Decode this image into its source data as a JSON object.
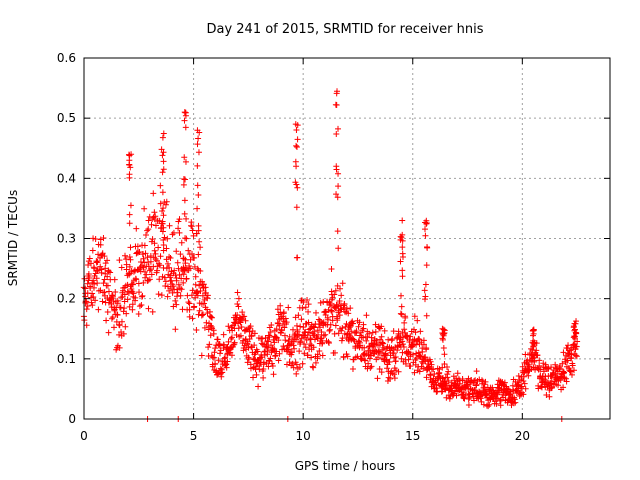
{
  "chart_data": {
    "type": "scatter",
    "title": "Day 241 of 2015, SRMTID for receiver hnis",
    "xlabel": "GPS time / hours",
    "ylabel": "SRMTID / TECUs",
    "xlim": [
      0,
      24
    ],
    "ylim": [
      0,
      0.6
    ],
    "xticks": [
      0,
      5,
      10,
      15,
      20
    ],
    "yticks": [
      0,
      0.1,
      0.2,
      0.3,
      0.4,
      0.5,
      0.6
    ],
    "xtick_labels": [
      "0",
      "5",
      "10",
      "15",
      "20"
    ],
    "ytick_labels": [
      "0",
      "0.1",
      "0.2",
      "0.3",
      "0.4",
      "0.5",
      "0.6"
    ],
    "grid": true,
    "marker": "+",
    "color": "#ff0000",
    "x_step_hours": 0.04,
    "series": [
      {
        "name": "SRMTID",
        "envelope": {
          "x": [
            0,
            0.5,
            1.0,
            1.5,
            2.0,
            2.5,
            3.0,
            3.5,
            4.0,
            4.5,
            5.0,
            5.5,
            6.0,
            6.5,
            7.0,
            7.5,
            8.0,
            8.5,
            9.0,
            9.5,
            10.0,
            10.5,
            11.0,
            11.5,
            12.0,
            12.5,
            13.0,
            13.5,
            14.0,
            14.5,
            15.0,
            15.5,
            16.0,
            16.5,
            17.0,
            17.5,
            18.0,
            18.5,
            19.0,
            19.5,
            20.0,
            20.5,
            21.0,
            21.5,
            22.0,
            22.5
          ],
          "center": [
            0.2,
            0.24,
            0.22,
            0.17,
            0.22,
            0.25,
            0.26,
            0.3,
            0.24,
            0.26,
            0.24,
            0.2,
            0.1,
            0.11,
            0.17,
            0.12,
            0.1,
            0.12,
            0.15,
            0.11,
            0.16,
            0.12,
            0.16,
            0.19,
            0.14,
            0.13,
            0.12,
            0.12,
            0.1,
            0.13,
            0.12,
            0.11,
            0.06,
            0.06,
            0.05,
            0.05,
            0.05,
            0.04,
            0.05,
            0.04,
            0.06,
            0.11,
            0.06,
            0.07,
            0.09,
            0.12
          ],
          "spread": [
            0.06,
            0.07,
            0.08,
            0.06,
            0.09,
            0.08,
            0.09,
            0.1,
            0.09,
            0.1,
            0.1,
            0.08,
            0.05,
            0.04,
            0.05,
            0.04,
            0.04,
            0.05,
            0.05,
            0.05,
            0.07,
            0.05,
            0.05,
            0.07,
            0.06,
            0.05,
            0.05,
            0.05,
            0.04,
            0.05,
            0.05,
            0.04,
            0.03,
            0.03,
            0.025,
            0.025,
            0.025,
            0.02,
            0.025,
            0.02,
            0.03,
            0.03,
            0.03,
            0.03,
            0.04,
            0.04
          ]
        },
        "peaks": [
          {
            "x": 2.1,
            "y": 0.44
          },
          {
            "x": 3.6,
            "y": 0.49
          },
          {
            "x": 4.6,
            "y": 0.51
          },
          {
            "x": 5.2,
            "y": 0.48
          },
          {
            "x": 9.7,
            "y": 0.49
          },
          {
            "x": 11.55,
            "y": 0.55
          },
          {
            "x": 14.5,
            "y": 0.33
          },
          {
            "x": 15.6,
            "y": 0.33
          },
          {
            "x": 16.4,
            "y": 0.15
          },
          {
            "x": 20.5,
            "y": 0.15
          },
          {
            "x": 22.4,
            "y": 0.17
          }
        ],
        "zeros": [
          2.9,
          4.3,
          9.3,
          21.8
        ]
      }
    ]
  }
}
